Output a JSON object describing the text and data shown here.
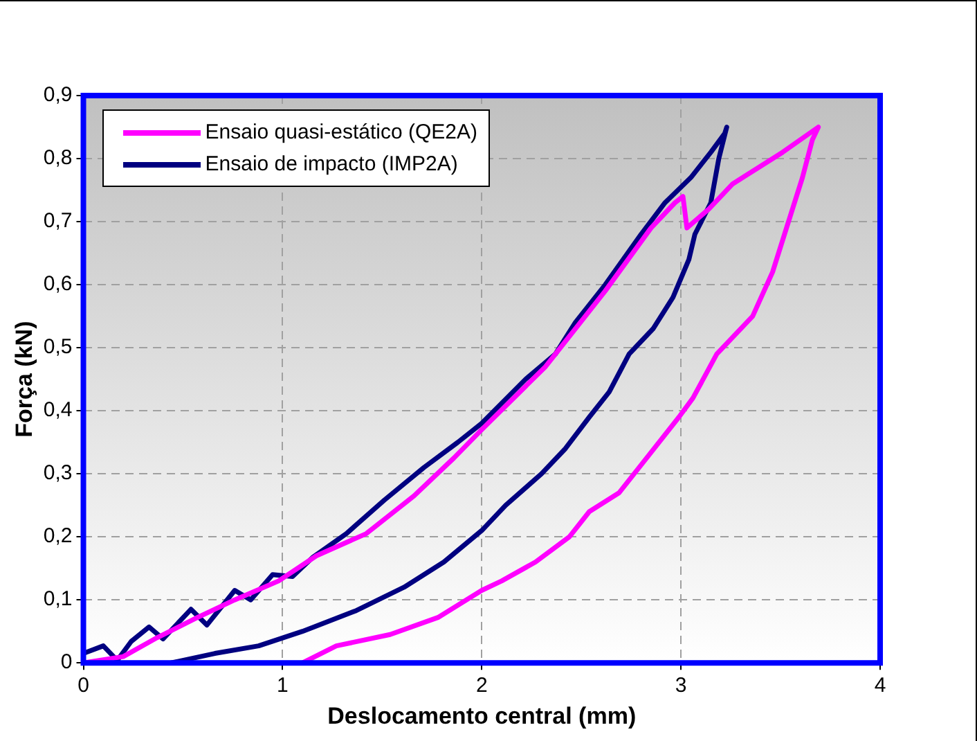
{
  "chart_data": {
    "type": "line",
    "xlabel": "Deslocamento central (mm)",
    "ylabel": "Força (kN)",
    "xlim": [
      0,
      4
    ],
    "ylim": [
      0,
      0.9
    ],
    "xticks": [
      0,
      1,
      2,
      3,
      4
    ],
    "yticks": [
      0,
      {
        "value": 0.1,
        "label": "0,1"
      },
      {
        "value": 0.2,
        "label": "0,2"
      },
      {
        "value": 0.3,
        "label": "0,3"
      },
      {
        "value": 0.4,
        "label": "0,4"
      },
      {
        "value": 0.5,
        "label": "0,5"
      },
      {
        "value": 0.6,
        "label": "0,6"
      },
      {
        "value": 0.7,
        "label": "0,7"
      },
      {
        "value": 0.8,
        "label": "0,8"
      },
      {
        "value": 0.9,
        "label": "0,9"
      }
    ],
    "grid": true,
    "legend": "top left",
    "marker": "none",
    "line_style": "solid",
    "series": [
      {
        "name": "Ensaio quasi-estático (QE2A)",
        "color": "#ff00ff",
        "x": [
          0,
          0.2,
          0.37,
          0.56,
          0.76,
          0.98,
          1.17,
          1.42,
          1.66,
          1.86,
          2.0,
          2.32,
          2.62,
          2.85,
          2.97,
          3.01,
          3.03,
          3.14,
          3.26,
          3.36,
          3.51,
          3.69,
          3.66,
          3.61,
          3.53,
          3.46,
          3.36,
          3.18,
          3.06,
          2.99,
          2.84,
          2.69,
          2.54,
          2.44,
          2.27,
          2.1,
          2.0,
          1.78,
          1.54,
          1.27,
          1.1
        ],
        "values": [
          0,
          0.01,
          0.04,
          0.07,
          0.1,
          0.13,
          0.17,
          0.205,
          0.265,
          0.325,
          0.37,
          0.47,
          0.59,
          0.69,
          0.73,
          0.74,
          0.69,
          0.72,
          0.76,
          0.78,
          0.81,
          0.85,
          0.83,
          0.77,
          0.69,
          0.62,
          0.55,
          0.49,
          0.42,
          0.39,
          0.33,
          0.27,
          0.24,
          0.2,
          0.16,
          0.13,
          0.115,
          0.072,
          0.045,
          0.027,
          0
        ]
      },
      {
        "name": "Ensaio de impacto (IMP2A)",
        "color": "#000080",
        "x": [
          0,
          0.1,
          0.17,
          0.24,
          0.33,
          0.4,
          0.54,
          0.62,
          0.76,
          0.84,
          0.95,
          1.05,
          1.15,
          1.32,
          1.51,
          1.71,
          1.88,
          2.0,
          2.22,
          2.37,
          2.47,
          2.62,
          2.8,
          2.92,
          3.05,
          3.15,
          3.22,
          3.23,
          3.19,
          3.15,
          3.07,
          3.04,
          2.96,
          2.86,
          2.74,
          2.64,
          2.54,
          2.42,
          2.3,
          2.12,
          2.0,
          1.81,
          1.61,
          1.37,
          1.1,
          0.88,
          0.66,
          0.44
        ],
        "values": [
          0.015,
          0.027,
          0.004,
          0.034,
          0.057,
          0.038,
          0.085,
          0.06,
          0.115,
          0.1,
          0.14,
          0.137,
          0.167,
          0.205,
          0.258,
          0.31,
          0.35,
          0.38,
          0.45,
          0.49,
          0.54,
          0.6,
          0.68,
          0.73,
          0.77,
          0.81,
          0.84,
          0.85,
          0.8,
          0.73,
          0.68,
          0.64,
          0.58,
          0.53,
          0.49,
          0.43,
          0.39,
          0.34,
          0.3,
          0.25,
          0.21,
          0.16,
          0.12,
          0.083,
          0.05,
          0.027,
          0.015,
          0
        ]
      }
    ]
  }
}
